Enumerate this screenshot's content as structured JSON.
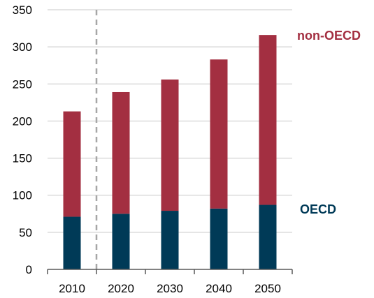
{
  "chart_data": {
    "type": "bar",
    "stacked": true,
    "title": "",
    "xlabel": "",
    "ylabel": "",
    "categories": [
      "2010",
      "2020",
      "2030",
      "2040",
      "2050"
    ],
    "series": [
      {
        "name": "OECD",
        "values": [
          71,
          75,
          79,
          82,
          87
        ],
        "color": "#003a57"
      },
      {
        "name": "non-OECD",
        "values": [
          142,
          164,
          177,
          201,
          229
        ],
        "color": "#a32f41"
      }
    ],
    "ylim": [
      0,
      350
    ],
    "yticks": [
      "0",
      "50",
      "100",
      "150",
      "200",
      "250",
      "300",
      "350"
    ],
    "grid": true,
    "divider_after_category": "2010",
    "legend": "inline-right",
    "colors": {
      "grid": "#c8c8c8",
      "axis": "#595959",
      "divider": "#a6a6a6",
      "text": "#000000"
    }
  }
}
